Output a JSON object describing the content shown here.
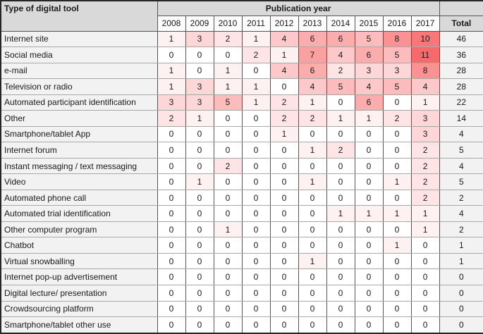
{
  "chart_data": {
    "type": "heatmap",
    "row_header": "Type of digital tool",
    "column_group_header": "Publication year",
    "total_label": "Total",
    "columns": [
      "2008",
      "2009",
      "2010",
      "2011",
      "2012",
      "2013",
      "2014",
      "2015",
      "2016",
      "2017"
    ],
    "rows": [
      {
        "label": "Internet site",
        "values": [
          1,
          3,
          2,
          1,
          4,
          6,
          6,
          5,
          8,
          10
        ],
        "total": 46
      },
      {
        "label": "Social media",
        "values": [
          0,
          0,
          0,
          2,
          1,
          7,
          4,
          6,
          5,
          11
        ],
        "total": 36
      },
      {
        "label": "e-mail",
        "values": [
          1,
          0,
          1,
          0,
          4,
          6,
          2,
          3,
          3,
          8
        ],
        "total": 28
      },
      {
        "label": "Television or radio",
        "values": [
          1,
          3,
          1,
          1,
          0,
          4,
          5,
          4,
          5,
          4
        ],
        "total": 28
      },
      {
        "label": "Automated participant identification",
        "values": [
          3,
          3,
          5,
          1,
          2,
          1,
          0,
          6,
          0,
          1
        ],
        "total": 22
      },
      {
        "label": "Other",
        "values": [
          2,
          1,
          0,
          0,
          2,
          2,
          1,
          1,
          2,
          3
        ],
        "total": 14
      },
      {
        "label": "Smartphone/tablet App",
        "values": [
          0,
          0,
          0,
          0,
          1,
          0,
          0,
          0,
          0,
          3
        ],
        "total": 4
      },
      {
        "label": "Internet forum",
        "values": [
          0,
          0,
          0,
          0,
          0,
          1,
          2,
          0,
          0,
          2
        ],
        "total": 5
      },
      {
        "label": "Instant messaging / text messaging",
        "values": [
          0,
          0,
          2,
          0,
          0,
          0,
          0,
          0,
          0,
          2
        ],
        "total": 4
      },
      {
        "label": "Video",
        "values": [
          0,
          1,
          0,
          0,
          0,
          1,
          0,
          0,
          1,
          2
        ],
        "total": 5
      },
      {
        "label": "Automated phone call",
        "values": [
          0,
          0,
          0,
          0,
          0,
          0,
          0,
          0,
          0,
          2
        ],
        "total": 2
      },
      {
        "label": "Automated trial identification",
        "values": [
          0,
          0,
          0,
          0,
          0,
          0,
          1,
          1,
          1,
          1
        ],
        "total": 4
      },
      {
        "label": "Other computer program",
        "values": [
          0,
          0,
          1,
          0,
          0,
          0,
          0,
          0,
          0,
          1
        ],
        "total": 2
      },
      {
        "label": "Chatbot",
        "values": [
          0,
          0,
          0,
          0,
          0,
          0,
          0,
          0,
          1,
          0
        ],
        "total": 1
      },
      {
        "label": "Virtual snowballing",
        "values": [
          0,
          0,
          0,
          0,
          0,
          1,
          0,
          0,
          0,
          0
        ],
        "total": 1
      },
      {
        "label": "Internet pop-up advertisement",
        "values": [
          0,
          0,
          0,
          0,
          0,
          0,
          0,
          0,
          0,
          0
        ],
        "total": 0
      },
      {
        "label": "Digital lecture/ presentation",
        "values": [
          0,
          0,
          0,
          0,
          0,
          0,
          0,
          0,
          0,
          0
        ],
        "total": 0
      },
      {
        "label": "Crowdsourcing platform",
        "values": [
          0,
          0,
          0,
          0,
          0,
          0,
          0,
          0,
          0,
          0
        ],
        "total": 0
      },
      {
        "label": "Smartphone/tablet other use",
        "values": [
          0,
          0,
          0,
          0,
          0,
          0,
          0,
          0,
          0,
          0
        ],
        "total": 0
      }
    ],
    "color_scale": {
      "min_value": 0,
      "max_value": 11,
      "min_color": "#FFFFFF",
      "max_color": "#F8696B"
    },
    "grid": true,
    "legend": "none"
  },
  "colors": {
    "header_bg": "#D9D9D9",
    "subheader_bg": "#FCFCFC",
    "label_col_bg": "#F2F2F2",
    "total_col_bg": "#F2F2F2",
    "border_dark": "#262626",
    "border_mid": "#545454",
    "border_light": "#A8A8A8",
    "text": "#1A1A1A"
  }
}
